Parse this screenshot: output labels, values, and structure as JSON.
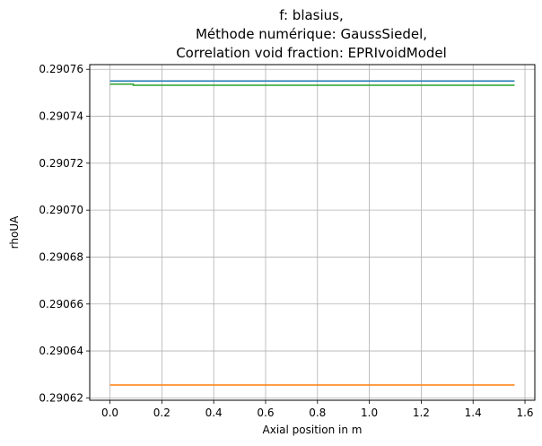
{
  "chart_data": {
    "type": "line",
    "title_lines": [
      "f: blasius,",
      "Méthode numérique: GaussSiedel,",
      "Correlation void fraction: EPRIvoidModel"
    ],
    "xlabel": "Axial position in m",
    "ylabel": "rhoUA",
    "xlim": [
      -0.078,
      1.638
    ],
    "ylim": [
      0.290619,
      0.290762
    ],
    "x_ticks": [
      0.0,
      0.2,
      0.4,
      0.6,
      0.8,
      1.0,
      1.2,
      1.4,
      1.6
    ],
    "x_tick_labels": [
      "0.0",
      "0.2",
      "0.4",
      "0.6",
      "0.8",
      "1.0",
      "1.2",
      "1.4",
      "1.6"
    ],
    "y_ticks": [
      0.29062,
      0.29064,
      0.29066,
      0.29068,
      0.2907,
      0.29072,
      0.29074,
      0.29076
    ],
    "y_tick_labels": [
      "0.29062",
      "0.29064",
      "0.29066",
      "0.29068",
      "0.29070",
      "0.29072",
      "0.29074",
      "0.29076"
    ],
    "grid": true,
    "series": [
      {
        "color": "#1f77b4",
        "x": [
          0.0,
          1.56
        ],
        "y": [
          0.290755,
          0.290755
        ]
      },
      {
        "color": "#ff7f0e",
        "x": [
          0.0,
          1.56
        ],
        "y": [
          0.2906255,
          0.2906255
        ]
      },
      {
        "color": "#2ca02c",
        "x": [
          0.0,
          0.09,
          0.09,
          1.56
        ],
        "y": [
          0.2907537,
          0.2907537,
          0.2907532,
          0.2907532
        ]
      }
    ]
  }
}
